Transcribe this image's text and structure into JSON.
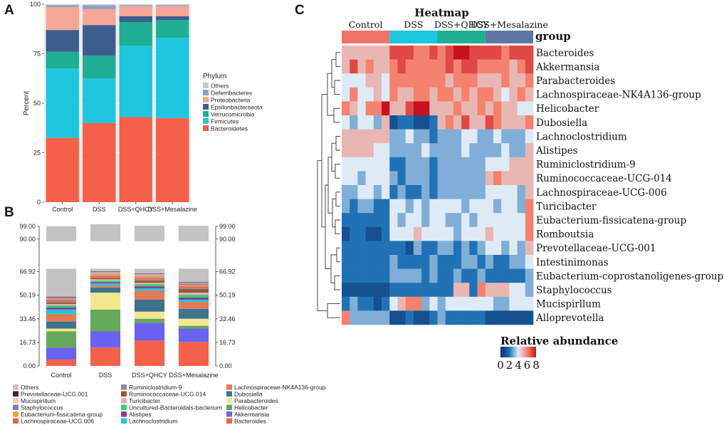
{
  "panels": {
    "a": "A",
    "b": "B",
    "c": "C"
  },
  "chart_data": [
    {
      "id": "A",
      "type": "bar",
      "stacked": true,
      "ylabel": "Percent",
      "ylim": [
        0,
        100
      ],
      "yticks": [
        "0",
        "25",
        "50",
        "75",
        "100"
      ],
      "categories": [
        "Control",
        "DSS",
        "DSS+QHCY",
        "DSS+Mesalazine"
      ],
      "legend_title": "Phylum",
      "legend": [
        "Others",
        "Deferribacteres",
        "Proteobacteria",
        "Epsilonbacteraeota",
        "Verrucomicrobia",
        "Firmicutes",
        "Bacteroidetes"
      ],
      "series": [
        {
          "name": "Bacteroidetes",
          "color": "#f4604a",
          "values": [
            32.5,
            40,
            43,
            42.5
          ]
        },
        {
          "name": "Firmicutes",
          "color": "#1ec6e0",
          "values": [
            35,
            22.5,
            36,
            40.5
          ]
        },
        {
          "name": "Verrucomicrobia",
          "color": "#1fae93",
          "values": [
            8.5,
            11.5,
            12,
            9
          ]
        },
        {
          "name": "Epsilonbacteraeota",
          "color": "#3c5e8e",
          "values": [
            11,
            15.5,
            3,
            2
          ]
        },
        {
          "name": "Proteobacteria",
          "color": "#f6a697",
          "values": [
            11.5,
            8,
            5,
            5
          ]
        },
        {
          "name": "Deferribacteres",
          "color": "#8ea1c6",
          "values": [
            1,
            2,
            0.5,
            0.5
          ]
        },
        {
          "name": "Others",
          "color": "#c7c7c7",
          "values": [
            0.5,
            0.5,
            0.5,
            0.5
          ]
        }
      ]
    },
    {
      "id": "B",
      "type": "bar",
      "stacked": true,
      "ylim": [
        0,
        99
      ],
      "yticks": [
        "0.00",
        "16.73",
        "33.46",
        "50.19",
        "66.92",
        "90.00",
        "99.00"
      ],
      "categories": [
        "Control",
        "DSS",
        "DSS+QHCY",
        "DSS+Mesalazine"
      ],
      "legend": [
        "Others",
        "Prevotellaceae-UCG.001",
        "Mucispirillum",
        "Staphylococcus",
        "Eubacterium-fissicatena-group",
        "Lachnospiraceae-UCG.006",
        "Ruminiclostridium-9",
        "Ruminococcaceae-UCG.014",
        "Turicibacter",
        "Uncultured-Bacteroidals-bacterium",
        "Alistipes",
        "Lachnoclostridium",
        "Lachnospiraceae-NK4A136-group",
        "Dubosiella",
        "Parabacteroides",
        "Helicobacter",
        "Akkermansia",
        "Bacteroides"
      ],
      "series": [
        {
          "name": "Bacteroides",
          "color": "#f4604a",
          "values": [
            4.5,
            13,
            18,
            17
          ]
        },
        {
          "name": "Akkermansia",
          "color": "#6a62f0",
          "values": [
            8.5,
            11.5,
            12.5,
            9.5
          ]
        },
        {
          "name": "Helicobacter",
          "color": "#66a85a",
          "values": [
            11.5,
            15.5,
            3,
            2
          ]
        },
        {
          "name": "Parabacteroides",
          "color": "#f1e88e",
          "values": [
            2,
            12,
            5,
            5
          ]
        },
        {
          "name": "Dubosiella",
          "color": "#3c7390",
          "values": [
            5,
            3.5,
            8.5,
            7
          ]
        },
        {
          "name": "Lachnospiraceae-NK4A136-group",
          "color": "#e27a55",
          "values": [
            5.5,
            1.5,
            6.5,
            5
          ]
        },
        {
          "name": "Lachnoclostridium",
          "color": "#1ec6e0",
          "values": [
            3,
            1.5,
            1.5,
            1.5
          ]
        },
        {
          "name": "Alistipes",
          "color": "#8a3c8f",
          "values": [
            1.5,
            1,
            1.5,
            1.5
          ]
        },
        {
          "name": "Uncultured-Bacteroidals-bacterium",
          "color": "#2fd27a",
          "values": [
            1.5,
            1,
            1.5,
            2
          ]
        },
        {
          "name": "Turicibacter",
          "color": "#f2a8b4",
          "values": [
            1,
            1,
            1,
            1.5
          ]
        },
        {
          "name": "Ruminococcaceae-UCG.014",
          "color": "#a0522d",
          "values": [
            1,
            1,
            1.5,
            2.5
          ]
        },
        {
          "name": "Ruminiclostridium-9",
          "color": "#8a8a9a",
          "values": [
            1,
            0.5,
            1,
            1
          ]
        },
        {
          "name": "Lachnospiraceae-UCG.006",
          "color": "#f4604a",
          "values": [
            1,
            1,
            1,
            1
          ]
        },
        {
          "name": "Eubacterium-fissicatena-group",
          "color": "#f4a040",
          "values": [
            0.5,
            1,
            1,
            1
          ]
        },
        {
          "name": "Staphylococcus",
          "color": "#8277c4",
          "values": [
            0.5,
            0.5,
            0.5,
            1
          ]
        },
        {
          "name": "Mucispirillum",
          "color": "#f9c9a5",
          "values": [
            0.5,
            1,
            1,
            0.5
          ]
        },
        {
          "name": "Prevotellaceae-UCG.001",
          "color": "#4b1d5a",
          "values": [
            0.5,
            0.5,
            0.5,
            0.5
          ]
        },
        {
          "name": "Others",
          "color": "#c3c3c3",
          "values": [
            50,
            33.5,
            34,
            40
          ]
        }
      ]
    },
    {
      "id": "C",
      "type": "heatmap",
      "title": "Heatmap",
      "annotation_label": "group",
      "groups": [
        {
          "name": "Control",
          "color": "#f07367",
          "n": 6
        },
        {
          "name": "DSS",
          "color": "#1cc7e0",
          "n": 6
        },
        {
          "name": "DSS+QHCY",
          "color": "#1fb093",
          "n": 6
        },
        {
          "name": "DSS+Mesalazine",
          "color": "#5e78a3",
          "n": 6
        }
      ],
      "rows": [
        "Bacteroides",
        "Akkermansia",
        "Parabacteroides",
        "Lachnospiraceae-NK4A136-group",
        "Helicobacter",
        "Dubosiella",
        "Lachnoclostridium",
        "Alistipes",
        "Ruminiclostridium-9",
        "Ruminococcaceae-UCG-014",
        "Lachnospiraceae-UCG-006",
        "Turicibacter",
        "Eubacterium-fissicatena-group",
        "Romboutsia",
        "Prevotellaceae-UCG-001",
        "Intestinimonas",
        "Eubacterium-coprostanoligenes-group",
        "Staphylococcus",
        "Mucispirllum",
        "Alloprevotella"
      ],
      "values": [
        [
          5,
          5,
          5,
          5,
          5,
          5,
          7,
          7,
          7,
          6,
          6,
          7,
          6,
          7,
          8,
          8,
          7,
          7,
          7,
          7,
          6,
          7,
          7,
          7
        ],
        [
          5,
          7,
          5,
          6,
          5,
          5,
          6,
          7,
          6,
          6,
          6,
          6,
          6,
          7,
          6,
          7,
          7,
          6,
          6,
          6,
          6,
          5,
          6,
          7
        ],
        [
          4,
          4,
          4,
          5,
          5,
          4,
          6,
          6,
          6,
          6,
          6,
          6,
          6,
          5,
          6,
          6,
          6,
          5,
          5,
          5,
          6,
          5,
          5,
          6
        ],
        [
          4,
          6,
          4,
          4,
          5,
          4,
          6,
          5,
          5,
          6,
          6,
          5,
          6,
          6,
          5,
          6,
          5,
          6,
          6,
          5,
          4,
          5,
          6,
          5
        ],
        [
          6,
          5,
          4,
          6,
          6,
          8,
          5,
          5,
          7,
          8,
          8,
          5,
          5,
          5,
          6,
          5,
          5,
          6,
          5,
          6,
          5,
          5,
          4,
          4
        ],
        [
          4,
          3,
          4,
          4,
          3,
          5,
          1,
          2,
          2,
          1,
          1,
          2,
          5,
          6,
          5,
          7,
          5,
          5,
          7,
          6,
          5,
          5,
          5,
          6
        ],
        [
          5,
          5,
          5,
          5,
          5,
          5,
          3,
          3,
          4,
          3,
          3,
          2,
          3,
          3,
          3,
          4,
          4,
          3,
          3,
          4,
          3,
          3,
          3,
          4
        ],
        [
          5,
          5,
          5,
          5,
          4,
          4,
          3,
          3,
          3,
          3,
          4,
          3,
          3,
          3,
          3,
          4,
          3,
          3,
          3,
          3,
          4,
          3,
          3,
          5
        ],
        [
          4,
          4,
          4,
          4,
          4,
          4,
          2,
          2,
          3,
          3,
          3,
          2,
          3,
          3,
          3,
          3,
          3,
          3,
          4,
          4,
          4,
          5,
          5,
          5
        ],
        [
          4,
          4,
          3,
          4,
          4,
          4,
          3,
          2,
          3,
          3,
          3,
          2,
          3,
          3,
          3,
          3,
          3,
          3,
          5,
          6,
          5,
          5,
          5,
          5
        ],
        [
          3,
          3,
          4,
          4,
          3,
          4,
          2,
          3,
          2,
          2,
          3,
          2,
          3,
          3,
          3,
          3,
          3,
          3,
          4,
          4,
          4,
          4,
          3,
          5
        ],
        [
          3,
          2,
          3,
          3,
          2,
          2,
          4,
          4,
          3,
          4,
          3,
          4,
          4,
          4,
          4,
          3,
          4,
          4,
          4,
          3,
          4,
          4,
          3,
          6
        ],
        [
          2,
          2,
          2,
          2,
          2,
          2,
          4,
          3,
          4,
          4,
          3,
          4,
          4,
          3,
          3,
          4,
          3,
          4,
          4,
          4,
          4,
          4,
          4,
          6
        ],
        [
          1,
          2,
          2,
          1,
          1,
          2,
          4,
          4,
          4,
          5,
          4,
          4,
          4,
          4,
          3,
          4,
          4,
          4,
          5,
          4,
          4,
          4,
          4,
          6
        ],
        [
          2,
          2,
          2,
          2,
          2,
          2,
          2,
          2,
          1,
          3,
          2,
          2,
          3,
          3,
          2,
          3,
          2,
          3,
          4,
          4,
          3,
          4,
          3,
          5
        ],
        [
          2,
          2,
          2,
          2,
          2,
          2,
          3,
          2,
          2,
          2,
          2,
          3,
          2,
          2,
          2,
          3,
          3,
          2,
          3,
          2,
          2,
          3,
          3,
          4
        ],
        [
          2,
          2,
          2,
          2,
          2,
          2,
          3,
          3,
          3,
          3,
          2,
          3,
          2,
          2,
          3,
          2,
          2,
          3,
          2,
          2,
          2,
          2,
          2,
          3
        ],
        [
          1,
          1,
          1,
          1,
          1,
          1,
          2,
          2,
          2,
          2,
          2,
          2,
          2,
          2,
          5,
          5,
          2,
          6,
          5,
          5,
          5,
          4,
          4,
          3
        ],
        [
          2,
          3,
          2,
          2,
          1,
          2,
          4,
          5,
          6,
          6,
          3,
          4,
          3,
          4,
          4,
          4,
          4,
          4,
          4,
          3,
          3,
          4,
          4,
          4
        ],
        [
          6,
          3,
          3,
          3,
          3,
          3,
          1,
          1,
          2,
          1,
          1,
          2,
          3,
          2,
          2,
          2,
          2,
          2,
          1,
          1,
          1,
          1,
          1,
          1
        ]
      ],
      "scale_title": "Relative abundance",
      "scale_ticks": [
        "0",
        "2",
        "4",
        "6",
        "8"
      ],
      "scale_range": [
        0,
        8
      ]
    }
  ]
}
